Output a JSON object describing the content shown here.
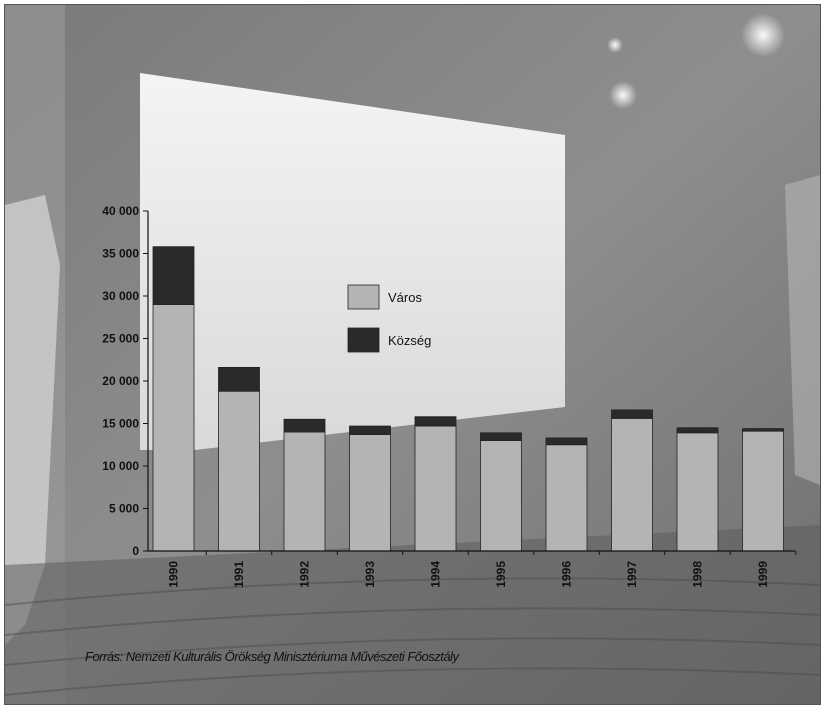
{
  "chart_data": {
    "type": "bar",
    "stacked": true,
    "categories": [
      "1990",
      "1991",
      "1992",
      "1993",
      "1994",
      "1995",
      "1996",
      "1997",
      "1998",
      "1999"
    ],
    "series": [
      {
        "name": "Város",
        "color": "#b4b4b4",
        "values": [
          29000,
          18800,
          14000,
          13700,
          14700,
          13000,
          12500,
          15600,
          13900,
          14100
        ]
      },
      {
        "name": "Község",
        "color": "#2a2a2a",
        "values": [
          6800,
          2800,
          1500,
          1000,
          1100,
          900,
          800,
          1000,
          600,
          300
        ]
      }
    ],
    "yticks": [
      "40 000",
      "35 000",
      "30 000",
      "25 000",
      "20 000",
      "15 000",
      "10 000",
      "5 000",
      "0"
    ],
    "ylim": [
      0,
      40000
    ],
    "legend_position": "center"
  },
  "source_text": "Forrás: Nemzeti Kulturális Örökség Minisztériuma Művészeti Főosztály"
}
